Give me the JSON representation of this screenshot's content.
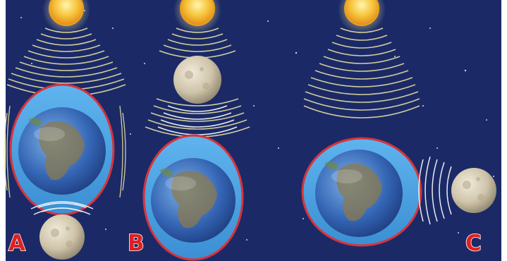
{
  "diagram": {
    "panels": [
      {
        "label": "A"
      },
      {
        "label": "B"
      },
      {
        "label": "C"
      }
    ]
  },
  "colors": {
    "space_background": "#1b2a66",
    "ocean_bulge": "#4aa3e0",
    "bulge_outline": "#d8333a",
    "sun": "#f7c33a",
    "gravity_waves": "#f3e9a6",
    "moon": "#d4cbb3",
    "label": "#e02020"
  }
}
